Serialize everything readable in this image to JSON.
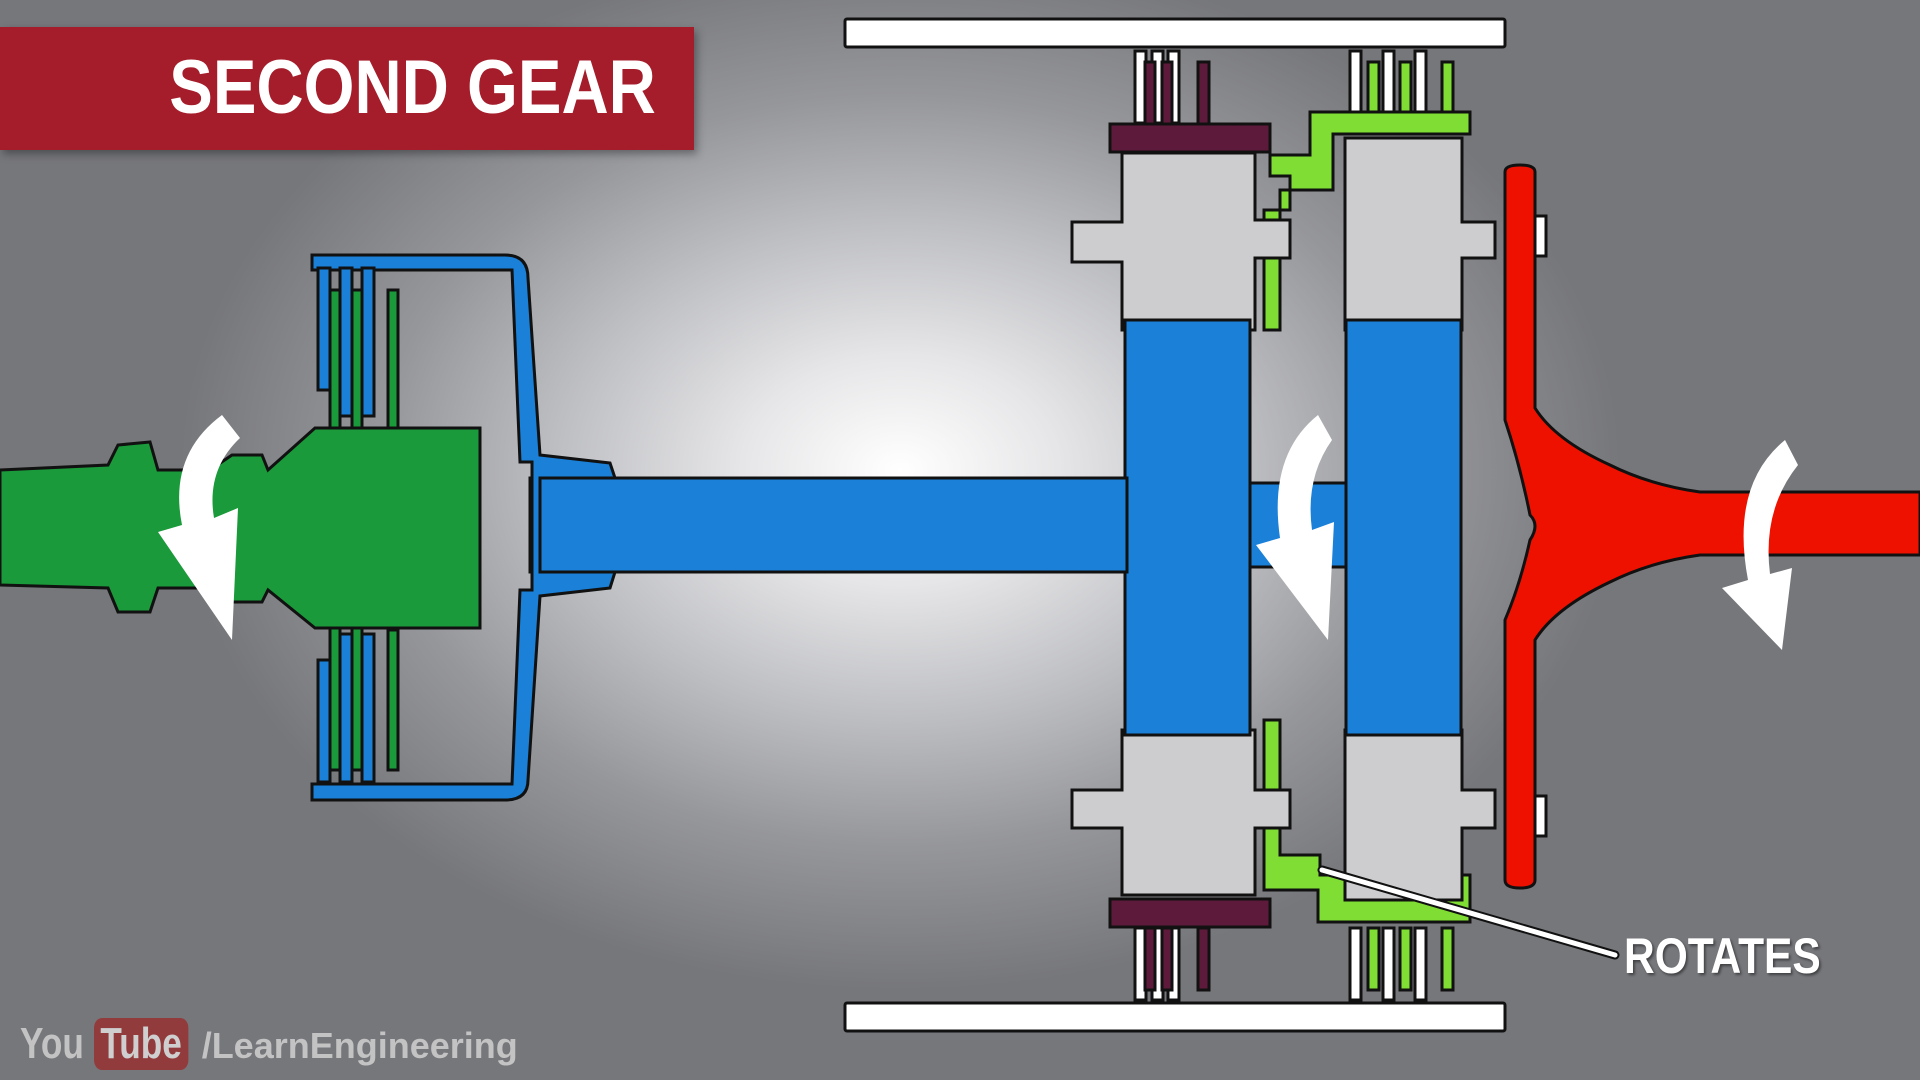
{
  "title": "SECOND GEAR",
  "callout": "ROTATES",
  "watermark": {
    "you": "You",
    "tube": "Tube",
    "handle": "/LearnEngineering"
  },
  "colors": {
    "title_banner": "#a51c2a",
    "input_shaft": "#1a9a3a",
    "clutch_drum": "#1a80d8",
    "output_shaft": "#ee1100",
    "ring_gear": "#80dd33",
    "band": "#5e1a3a",
    "planet_carrier": "#cdcdcf",
    "arrow": "#ffffff"
  },
  "icons": [
    "rotation-arrow-icon",
    "youtube-logo-icon"
  ]
}
